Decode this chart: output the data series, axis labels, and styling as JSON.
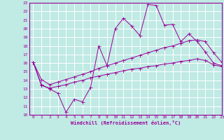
{
  "xlabel": "Windchill (Refroidissement éolien,°C)",
  "xlim": [
    -0.5,
    23
  ],
  "ylim": [
    10,
    23
  ],
  "yticks": [
    10,
    11,
    12,
    13,
    14,
    15,
    16,
    17,
    18,
    19,
    20,
    21,
    22,
    23
  ],
  "xticks": [
    0,
    1,
    2,
    3,
    4,
    5,
    6,
    7,
    8,
    9,
    10,
    11,
    12,
    13,
    14,
    15,
    16,
    17,
    18,
    19,
    20,
    21,
    22,
    23
  ],
  "bg_color": "#c0eae4",
  "line_color": "#990099",
  "grid_color": "#aadddd",
  "line1_x": [
    0,
    1,
    2,
    3,
    4,
    5,
    6,
    7,
    8,
    9,
    10,
    11,
    12,
    13,
    14,
    15,
    16,
    17,
    18,
    19,
    20,
    21,
    22,
    23
  ],
  "line1_y": [
    16.1,
    13.5,
    13.0,
    12.5,
    10.3,
    11.8,
    11.5,
    13.2,
    18.0,
    15.7,
    20.0,
    21.2,
    20.3,
    19.2,
    22.8,
    22.7,
    20.4,
    20.5,
    18.5,
    19.4,
    18.5,
    17.3,
    16.0,
    15.7
  ],
  "line2_x": [
    0,
    1,
    2,
    3,
    4,
    5,
    6,
    7,
    8,
    9,
    10,
    11,
    12,
    13,
    14,
    15,
    16,
    17,
    18,
    19,
    20,
    21,
    22,
    23
  ],
  "line2_y": [
    16.1,
    14.1,
    13.5,
    13.8,
    14.1,
    14.4,
    14.7,
    15.0,
    15.4,
    15.7,
    16.0,
    16.3,
    16.6,
    16.9,
    17.2,
    17.5,
    17.8,
    18.0,
    18.3,
    18.6,
    18.7,
    18.5,
    17.2,
    16.1
  ],
  "line3_x": [
    0,
    1,
    2,
    3,
    4,
    5,
    6,
    7,
    8,
    9,
    10,
    11,
    12,
    13,
    14,
    15,
    16,
    17,
    18,
    19,
    20,
    21,
    22,
    23
  ],
  "line3_y": [
    16.1,
    13.4,
    13.1,
    13.3,
    13.5,
    13.8,
    14.0,
    14.3,
    14.5,
    14.7,
    14.9,
    15.1,
    15.3,
    15.4,
    15.6,
    15.7,
    15.9,
    16.0,
    16.2,
    16.3,
    16.5,
    16.3,
    15.8,
    15.6
  ]
}
